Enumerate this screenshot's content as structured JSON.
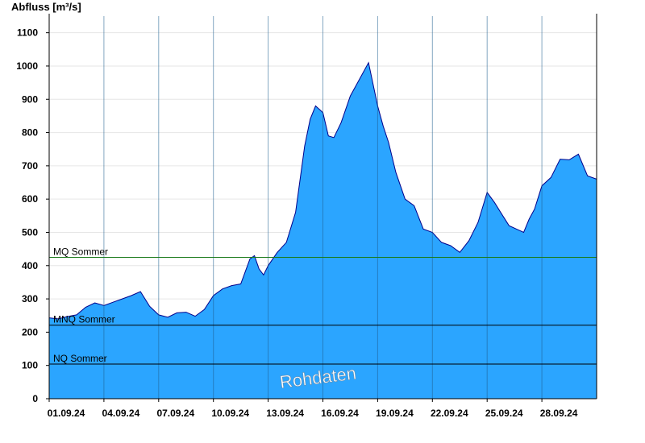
{
  "chart_data": {
    "type": "area",
    "ylabel": "Abfluss [m³/s]",
    "ylim": [
      0,
      1150
    ],
    "yticks": [
      0,
      100,
      200,
      300,
      400,
      500,
      600,
      700,
      800,
      900,
      1000,
      1100
    ],
    "xlim": [
      0,
      30
    ],
    "xticks": [
      {
        "x": 0,
        "label": "01.09.24"
      },
      {
        "x": 3,
        "label": "04.09.24"
      },
      {
        "x": 6,
        "label": "07.09.24"
      },
      {
        "x": 9,
        "label": "10.09.24"
      },
      {
        "x": 12,
        "label": "13.09.24"
      },
      {
        "x": 15,
        "label": "16.09.24"
      },
      {
        "x": 18,
        "label": "19.09.24"
      },
      {
        "x": 21,
        "label": "22.09.24"
      },
      {
        "x": 24,
        "label": "25.09.24"
      },
      {
        "x": 27,
        "label": "28.09.24"
      }
    ],
    "x_unit": "days since 01.09.24",
    "series": [
      {
        "x": [
          0,
          0.5,
          1,
          1.5,
          2,
          2.5,
          3,
          3.5,
          4,
          4.5,
          5,
          5.5,
          6,
          6.5,
          7,
          7.5,
          8,
          8.5,
          9,
          9.5,
          10,
          10.5,
          11,
          11.25,
          11.5,
          11.75,
          12,
          12.5,
          13,
          13.5,
          14,
          14.3,
          14.6,
          15,
          15.3,
          15.6,
          16,
          16.5,
          17,
          17.5,
          18,
          18.3,
          18.6,
          19,
          19.5,
          20,
          20.5,
          21,
          21.5,
          22,
          22.5,
          23,
          23.5,
          24,
          24.4,
          24.8,
          25.2,
          25.6,
          26,
          26.3,
          26.6,
          27,
          27.5,
          28,
          28.5,
          29,
          29.5,
          30
        ],
        "values": [
          243,
          240,
          247,
          252,
          275,
          288,
          280,
          290,
          300,
          310,
          322,
          278,
          252,
          245,
          258,
          260,
          248,
          268,
          310,
          330,
          340,
          345,
          420,
          430,
          390,
          372,
          400,
          440,
          470,
          560,
          760,
          840,
          880,
          860,
          790,
          785,
          830,
          910,
          960,
          1010,
          880,
          820,
          770,
          680,
          600,
          580,
          510,
          500,
          470,
          460,
          440,
          475,
          530,
          620,
          590,
          555,
          520,
          510,
          500,
          540,
          570,
          640,
          665,
          720,
          718,
          735,
          670,
          660
        ]
      }
    ],
    "reference_lines": [
      {
        "label": "MQ Sommer",
        "value": 425,
        "color": "#1a7a1a"
      },
      {
        "label": "MNQ Sommer",
        "value": 221,
        "color": "#000000"
      },
      {
        "label": "NQ Sommer",
        "value": 104,
        "color": "#000000"
      }
    ],
    "fill_color": "#2ba5ff",
    "line_color": "#00008b",
    "grid": true,
    "watermark": "Rohdaten"
  }
}
